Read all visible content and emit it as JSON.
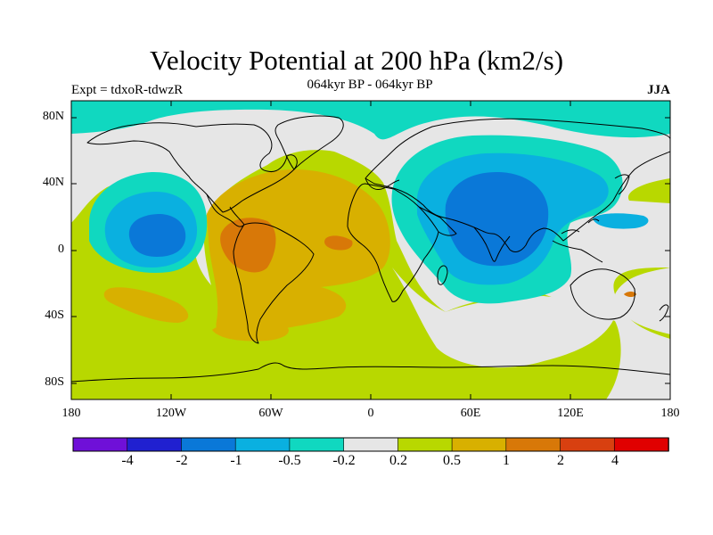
{
  "title": "Velocity Potential at 200 hPa (km2/s)",
  "experiment": "Expt = tdxoR-tdwzR",
  "period": "064kyr BP - 064kyr BP",
  "season": "JJA",
  "lat_ticks": [
    "80N",
    "40N",
    "0",
    "40S",
    "80S"
  ],
  "lon_ticks": [
    "180",
    "120W",
    "60W",
    "0",
    "60E",
    "120E",
    "180"
  ],
  "colorbar": {
    "colors": [
      "#6f10d8",
      "#2020d0",
      "#0a78d8",
      "#0ab0e0",
      "#10d8c0",
      "#e6e6e6",
      "#b8d800",
      "#d8b000",
      "#d87808",
      "#d84010",
      "#e00000"
    ],
    "labels": [
      "-4",
      "-2",
      "-1",
      "-0.5",
      "-0.2",
      "0.2",
      "0.5",
      "1",
      "2",
      "4"
    ]
  },
  "map": {
    "projection": "cylindrical-equidistant",
    "lon_range": [
      -180,
      180
    ],
    "lat_range": [
      -90,
      90
    ],
    "background_level_color": "#b8d800",
    "field_features": [
      {
        "level": "-0.2 to 0.2",
        "color": "#e6e6e6",
        "region": "northern high latitudes"
      },
      {
        "level": "-0.5 to -0.2",
        "color": "#10d8c0",
        "region": "Arctic / Eurasia"
      },
      {
        "level": "-1 to -0.5",
        "color": "#0ab0e0",
        "region": "Eastern Pacific"
      },
      {
        "level": "-2 to -1",
        "color": "#0a78d8",
        "region": "Eastern Pacific"
      },
      {
        "level": "-1 to -0.5",
        "color": "#0ab0e0",
        "region": "Eurasia / Indian Ocean"
      },
      {
        "level": "-2 to -1",
        "color": "#0a78d8",
        "region": "Asia / Indian Ocean"
      },
      {
        "level": "0.2 to 0.5",
        "color": "#b8d800",
        "region": "Americas / Atlantic"
      },
      {
        "level": "0.5 to 1",
        "color": "#d8b000",
        "region": "Americas / Atlantic"
      },
      {
        "level": "1 to 2",
        "color": "#d87808",
        "region": "Northern South America"
      },
      {
        "level": "-0.2 to 0.2",
        "color": "#e6e6e6",
        "region": "Southern Indian Ocean"
      }
    ]
  }
}
